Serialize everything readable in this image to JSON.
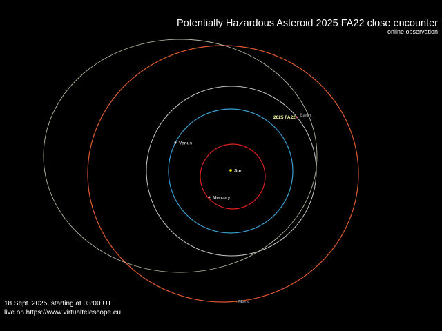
{
  "header": {
    "title": "Potentially Hazardous Asteroid 2025 FA22 close encounter",
    "subtitle": "online observation"
  },
  "footer": {
    "date_line": "18 Sept. 2025, starting at 03:00 UT",
    "url_line": "live on https://www.virtualtelescope.eu"
  },
  "bodies": {
    "sun": {
      "label": "Sun",
      "color": "#ffff00"
    },
    "mercury": {
      "label": "Mercury",
      "orbit_color": "#e02020"
    },
    "venus": {
      "label": "Venus",
      "orbit_color": "#3a9fd0"
    },
    "earth": {
      "label": "Earth",
      "orbit_color": "#c8c8c8"
    },
    "mars": {
      "label": "Mars",
      "orbit_color": "#e05a30"
    },
    "asteroid": {
      "label": "2025 FA22",
      "orbit_color": "#b8b8a0",
      "label_color": "#ffffa0"
    }
  }
}
